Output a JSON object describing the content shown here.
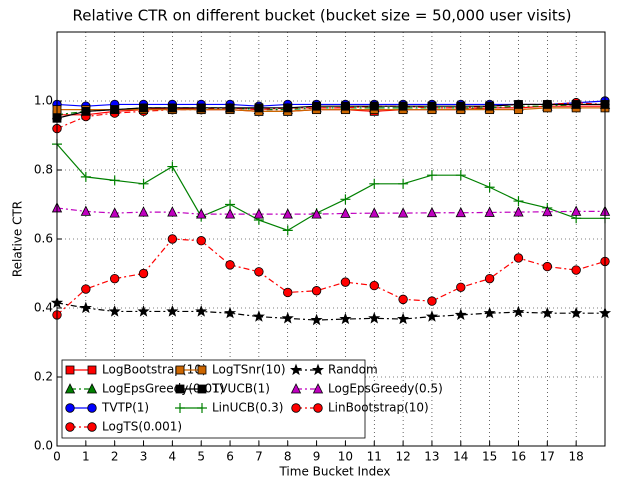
{
  "chart_data": {
    "type": "line",
    "title": "Relative CTR on different bucket (bucket size = 50,000 user visits)",
    "xlabel": "Time Bucket Index",
    "ylabel": "Relative CTR",
    "x": [
      0,
      1,
      2,
      3,
      4,
      5,
      6,
      7,
      8,
      9,
      10,
      11,
      12,
      13,
      14,
      15,
      16,
      17,
      18,
      19
    ],
    "xlim": [
      0,
      19
    ],
    "xticks": [
      0,
      1,
      2,
      3,
      4,
      5,
      6,
      7,
      8,
      9,
      10,
      11,
      12,
      13,
      14,
      15,
      16,
      17,
      18
    ],
    "ylim": [
      0,
      1.2
    ],
    "yticks": [
      {
        "value": 0,
        "label": "0.0"
      },
      0.2,
      0.4,
      0.6,
      0.8,
      {
        "value": 1,
        "label": "1.0"
      }
    ],
    "grid": true,
    "legend": "lower left",
    "series": [
      {
        "name": "LogBootstrap(10)",
        "color": "#ff0000",
        "marker": "square",
        "linestyle": "solid",
        "values": [
          0.96,
          0.96,
          0.97,
          0.975,
          0.98,
          0.975,
          0.975,
          0.97,
          0.97,
          0.975,
          0.975,
          0.97,
          0.975,
          0.975,
          0.975,
          0.98,
          0.98,
          0.985,
          0.985,
          0.985
        ]
      },
      {
        "name": "LogEpsGreedy(0.01)",
        "color": "#008000",
        "marker": "triangle",
        "linestyle": "dashdot",
        "values": [
          0.96,
          0.97,
          0.975,
          0.98,
          0.98,
          0.98,
          0.98,
          0.975,
          0.975,
          0.98,
          0.98,
          0.98,
          0.98,
          0.98,
          0.98,
          0.98,
          0.985,
          0.985,
          0.99,
          0.99
        ]
      },
      {
        "name": "TVTP(1)",
        "color": "#0000ff",
        "marker": "circle",
        "linestyle": "solid",
        "values": [
          0.99,
          0.985,
          0.99,
          0.99,
          0.99,
          0.99,
          0.99,
          0.985,
          0.99,
          0.99,
          0.99,
          0.99,
          0.99,
          0.99,
          0.99,
          0.99,
          0.99,
          0.99,
          0.995,
          1.0
        ]
      },
      {
        "name": "LogTS(0.001)",
        "color": "#ff0000",
        "marker": "circle",
        "linestyle": "dashdot",
        "values": [
          0.92,
          0.955,
          0.965,
          0.97,
          0.975,
          0.975,
          0.98,
          0.975,
          0.98,
          0.98,
          0.98,
          0.985,
          0.985,
          0.98,
          0.98,
          0.985,
          0.99,
          0.99,
          0.995,
          0.99
        ]
      },
      {
        "name": "LogTSnr(10)",
        "color": "#cc6600",
        "marker": "square",
        "linestyle": "solid",
        "values": [
          0.975,
          0.975,
          0.975,
          0.975,
          0.975,
          0.975,
          0.975,
          0.97,
          0.97,
          0.975,
          0.975,
          0.975,
          0.975,
          0.975,
          0.975,
          0.975,
          0.975,
          0.98,
          0.98,
          0.98
        ]
      },
      {
        "name": "TVUCB(1)",
        "color": "#000000",
        "marker": "square",
        "linestyle": "solid",
        "values": [
          0.95,
          0.97,
          0.975,
          0.98,
          0.98,
          0.98,
          0.98,
          0.98,
          0.98,
          0.985,
          0.985,
          0.985,
          0.985,
          0.985,
          0.985,
          0.985,
          0.99,
          0.99,
          0.99,
          0.99
        ]
      },
      {
        "name": "LinUCB(0.3)",
        "color": "#008000",
        "marker": "plus",
        "linestyle": "solid",
        "values": [
          0.875,
          0.78,
          0.77,
          0.76,
          0.81,
          0.665,
          0.7,
          0.655,
          0.625,
          0.675,
          0.715,
          0.76,
          0.76,
          0.785,
          0.785,
          0.75,
          0.71,
          0.69,
          0.66,
          0.66
        ]
      },
      {
        "name": "Random",
        "color": "#000000",
        "marker": "star",
        "linestyle": "dashdot",
        "values": [
          0.415,
          0.4,
          0.39,
          0.39,
          0.39,
          0.39,
          0.385,
          0.375,
          0.37,
          0.365,
          0.368,
          0.37,
          0.368,
          0.375,
          0.38,
          0.385,
          0.388,
          0.385,
          0.385,
          0.385
        ]
      },
      {
        "name": "LogEpsGreedy(0.5)",
        "color": "#bf00bf",
        "marker": "triangle",
        "linestyle": "dashdot",
        "values": [
          0.69,
          0.68,
          0.675,
          0.678,
          0.678,
          0.672,
          0.672,
          0.672,
          0.672,
          0.672,
          0.674,
          0.675,
          0.675,
          0.676,
          0.676,
          0.677,
          0.678,
          0.679,
          0.68,
          0.68
        ]
      },
      {
        "name": "LinBootstrap(10)",
        "color": "#ff0000",
        "marker": "circle",
        "linestyle": "dashdot",
        "values": [
          0.38,
          0.455,
          0.485,
          0.5,
          0.6,
          0.595,
          0.525,
          0.505,
          0.445,
          0.45,
          0.475,
          0.465,
          0.425,
          0.42,
          0.46,
          0.485,
          0.545,
          0.52,
          0.51,
          0.535
        ]
      }
    ]
  }
}
